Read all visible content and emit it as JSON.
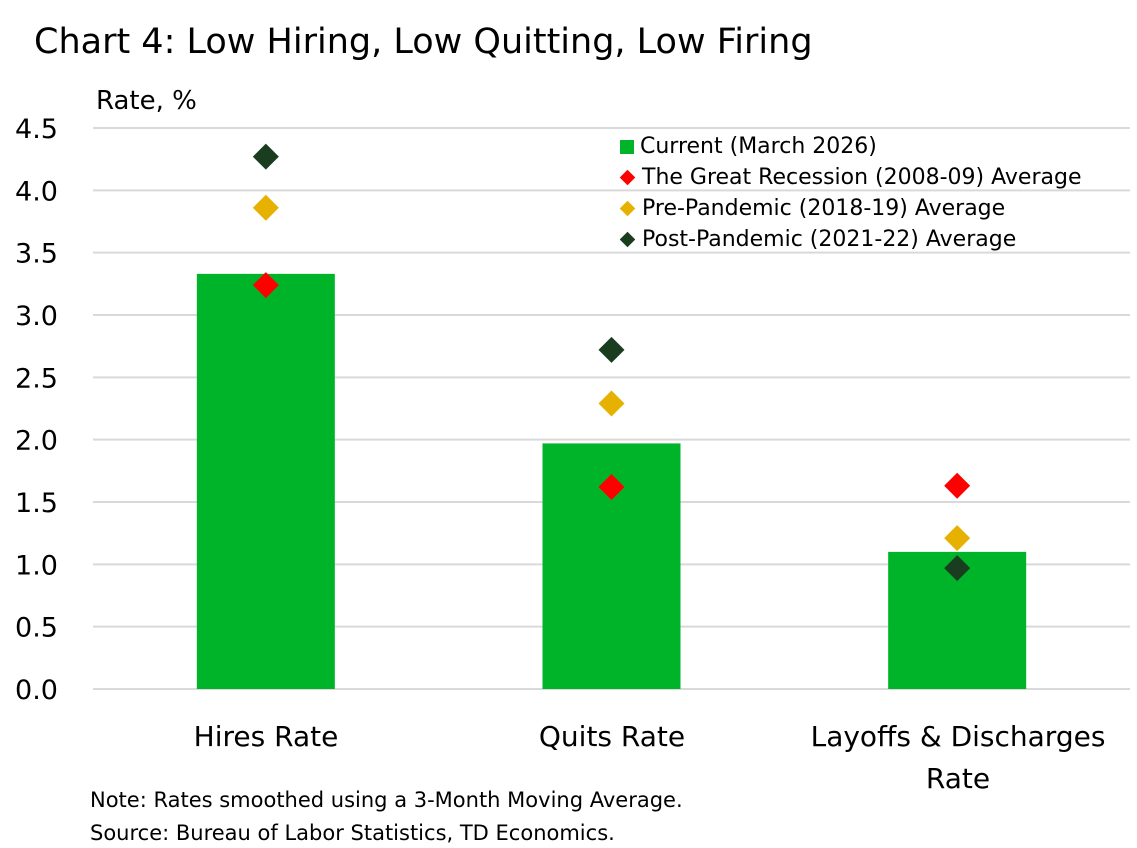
{
  "chart_data": {
    "type": "bar",
    "title": "Chart 4: Low Hiring, Low Quitting, Low Firing",
    "ylabel": "Rate, %",
    "xlabel": "",
    "ylim": [
      0,
      4.5
    ],
    "yticks": [
      "0.0",
      "0.5",
      "1.0",
      "1.5",
      "2.0",
      "2.5",
      "3.0",
      "3.5",
      "4.0",
      "4.5"
    ],
    "grid": true,
    "legend_position": "top-right",
    "categories": [
      "Hires Rate",
      "Quits Rate",
      "Layoffs & Discharges Rate"
    ],
    "series": [
      {
        "name": "Current (March 2026)",
        "type": "bar",
        "color": "#00B42A",
        "values": [
          3.33,
          1.97,
          1.1
        ]
      },
      {
        "name": "The Great Recession (2008-09) Average",
        "type": "scatter",
        "marker": "diamond",
        "color": "#FF0000",
        "values": [
          3.24,
          1.62,
          1.63
        ]
      },
      {
        "name": "Pre-Pandemic (2018-19) Average",
        "type": "scatter",
        "marker": "diamond",
        "color": "#E6B100",
        "values": [
          3.86,
          2.29,
          1.21
        ]
      },
      {
        "name": "Post-Pandemic (2021-22) Average",
        "type": "scatter",
        "marker": "diamond",
        "color": "#1A3D1F",
        "values": [
          4.27,
          2.72,
          0.97
        ]
      }
    ],
    "notes": [
      "Note: Rates smoothed using a 3-Month Moving Average.",
      "Source: Bureau of Labor Statistics, TD Economics."
    ]
  },
  "colors": {
    "bar": "#00B42A",
    "gridline": "#D9D9D9",
    "text": "#000000"
  }
}
